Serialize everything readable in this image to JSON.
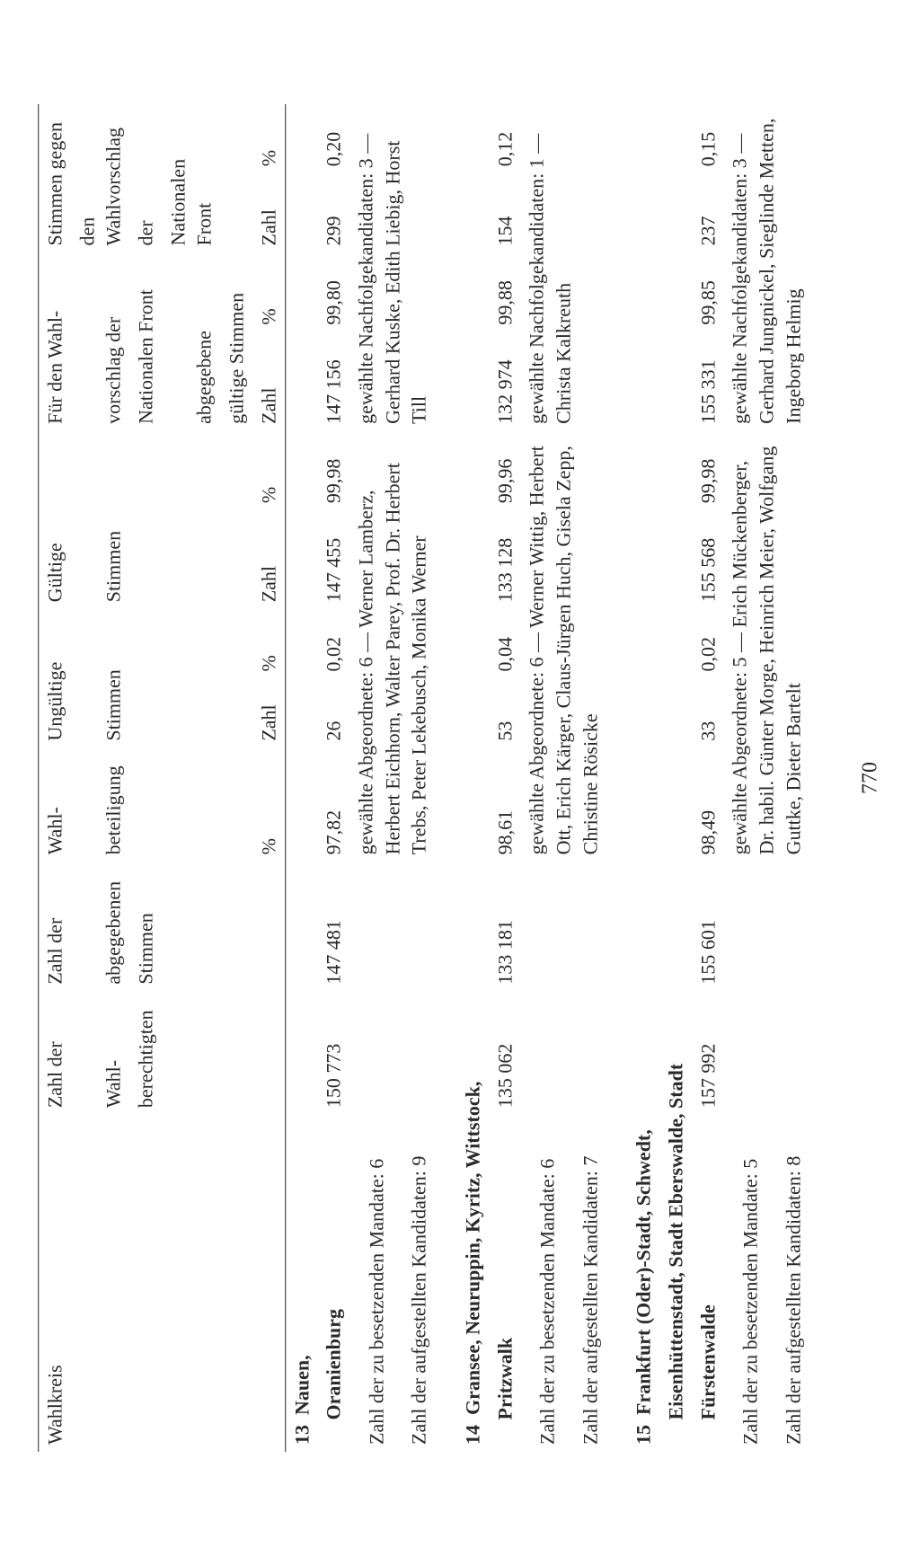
{
  "page_number": "770",
  "header": {
    "col1_l1": "Wahlkreis",
    "col2_l1": "Zahl der",
    "col2_l2": "Wahl-",
    "col2_l3": "berechtigten",
    "col3_l1": "Zahl der",
    "col3_l2": "abgegebenen",
    "col3_l3": "Stimmen",
    "col4_l1": "Wahl-",
    "col4_l2": "beteiligung",
    "col5_l1": "Ungültige",
    "col5_l2": "Stimmen",
    "col7_l1": "Gültige",
    "col7_l2": "Stimmen",
    "col9_l1": "Für den Wahl-",
    "col9_l2": "vorschlag der",
    "col9_l3": "Nationalen Front",
    "col9_l4": "abgegebene",
    "col9_l5": "gültige Stimmen",
    "col11_l1": "Stimmen gegen",
    "col11_l2": "den Wahlvorschlag",
    "col11_l3": "der",
    "col11_l4": "Nationalen Front",
    "pct": "%",
    "zahl": "Zahl"
  },
  "districts": [
    {
      "num": "13",
      "name_l1": "Nauen,",
      "name_l2": "Oranienburg",
      "berechtigte": "150 773",
      "abgegebene": "147 481",
      "beteiligung": "97,82",
      "ungueltig_zahl": "26",
      "ungueltig_pct": "0,02",
      "gueltig_zahl": "147 455",
      "gueltig_pct": "99,98",
      "dafuer_zahl": "147 156",
      "dafuer_pct": "99,80",
      "dagegen_zahl": "299",
      "dagegen_pct": "0,20",
      "mandate_label": "Zahl der zu besetzenden Mandate: 6",
      "kandidaten_label": "Zahl der aufgestellten Kandidaten: 9",
      "abgeordnete": "gewählte Abgeordnete: 6 — Werner Lamberz, Herbert Eichhorn, Walter Parey, Prof. Dr. Herbert Trebs, Peter Lekebusch, Monika Werner",
      "nachfolge": "gewählte Nachfolgekandidaten: 3 — Gerhard Kuske, Edith Liebig, Horst Till"
    },
    {
      "num": "14",
      "name_l1": "Gransee, Neuruppin, Kyritz, Wittstock,",
      "name_l2": "Pritzwalk",
      "berechtigte": "135 062",
      "abgegebene": "133 181",
      "beteiligung": "98,61",
      "ungueltig_zahl": "53",
      "ungueltig_pct": "0,04",
      "gueltig_zahl": "133 128",
      "gueltig_pct": "99,96",
      "dafuer_zahl": "132 974",
      "dafuer_pct": "99,88",
      "dagegen_zahl": "154",
      "dagegen_pct": "0,12",
      "mandate_label": "Zahl der zu besetzenden Mandate: 6",
      "kandidaten_label": "Zahl der aufgestellten Kandidaten: 7",
      "abgeordnete": "gewählte Abgeordnete: 6 — Werner Wittig, Herbert Ott, Erich Kärger, Claus-Jürgen Huch, Gisela Zepp, Christine Rösicke",
      "nachfolge": "gewählte Nachfolgekandidaten: 1 — Christa Kalkreuth"
    },
    {
      "num": "15",
      "name_l1": "Frankfurt (Oder)-Stadt, Schwedt,",
      "name_l2": "Eisenhüttenstadt, Stadt Eberswalde, Stadt",
      "name_l3": "Fürstenwalde",
      "berechtigte": "157 992",
      "abgegebene": "155 601",
      "beteiligung": "98,49",
      "ungueltig_zahl": "33",
      "ungueltig_pct": "0,02",
      "gueltig_zahl": "155 568",
      "gueltig_pct": "99,98",
      "dafuer_zahl": "155 331",
      "dafuer_pct": "99,85",
      "dagegen_zahl": "237",
      "dagegen_pct": "0,15",
      "mandate_label": "Zahl der zu besetzenden Mandate: 5",
      "kandidaten_label": "Zahl der aufgestellten Kandidaten: 8",
      "abgeordnete": "gewählte Abgeordnete: 5 — Erich Mückenberger, Dr. habil. Günter Morge, Heinrich Meier, Wolfgang Guttke, Dieter Bartelt",
      "nachfolge": "gewählte Nachfolgekandidaten: 3 — Gerhard Jungnickel, Sieglinde Metten, Ingeborg Helmig"
    }
  ]
}
